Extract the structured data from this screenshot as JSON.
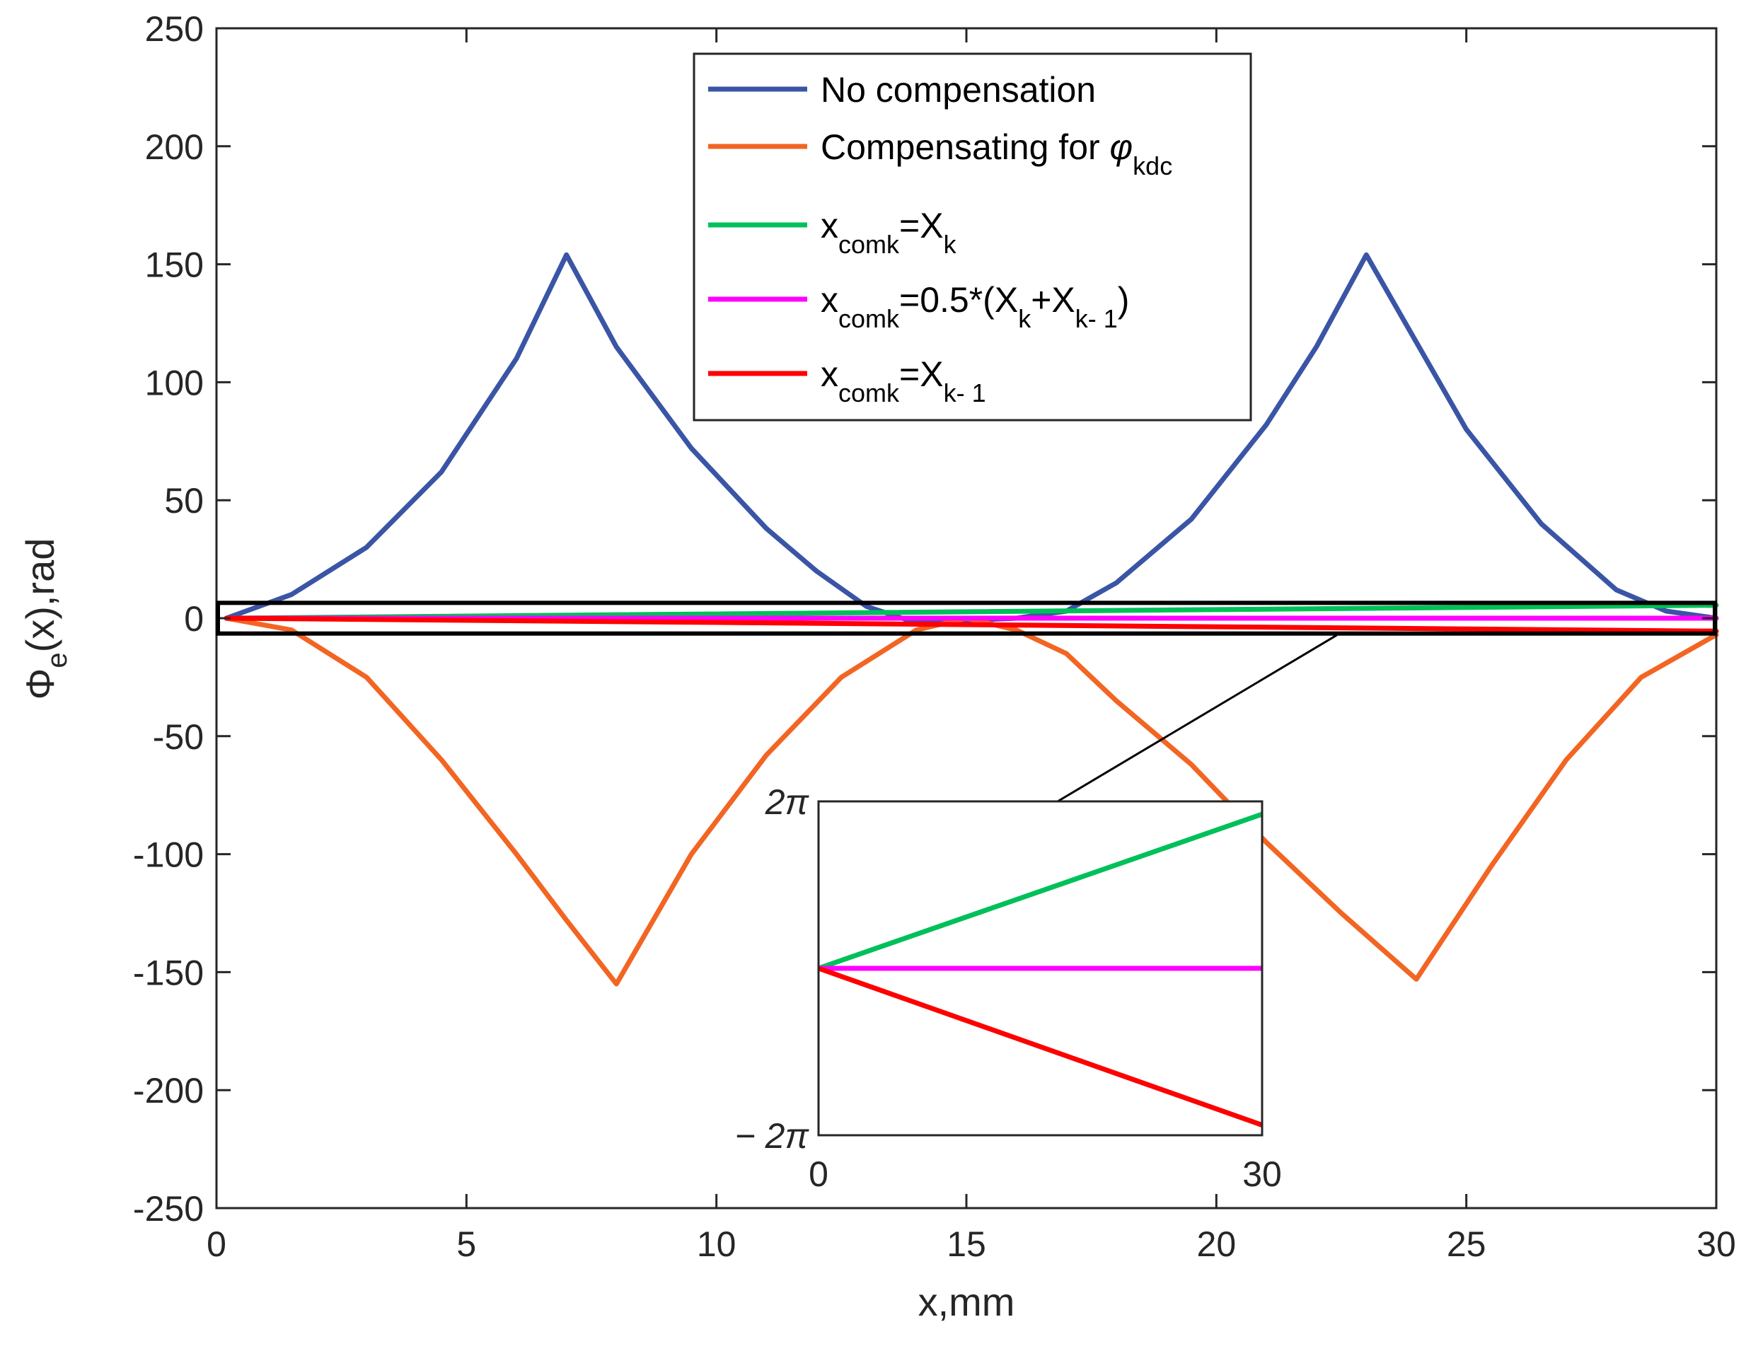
{
  "chart_data": {
    "type": "line",
    "xlabel": "x,mm",
    "ylabel": {
      "main": "Φ",
      "sub": "e",
      "rest": "(x),rad"
    },
    "xlim": [
      0,
      30
    ],
    "ylim": [
      -250,
      250
    ],
    "xticks": [
      0,
      5,
      10,
      15,
      20,
      25,
      30
    ],
    "yticks": [
      -250,
      -200,
      -150,
      -100,
      -50,
      0,
      50,
      100,
      150,
      200,
      250
    ],
    "grid": false,
    "legend_position": "top-center",
    "series": [
      {
        "name": "No compensation",
        "legend": [
          {
            "t": "No compensation"
          }
        ],
        "color": "#3a55a5",
        "x": [
          0.2,
          1.5,
          3,
          4.5,
          6,
          7,
          8,
          9.5,
          11,
          12,
          13,
          14,
          15,
          16,
          17,
          18,
          19.5,
          21,
          22,
          23,
          24,
          25,
          26.5,
          28,
          29,
          30
        ],
        "y": [
          0,
          10,
          30,
          62,
          110,
          154,
          115,
          72,
          38,
          20,
          5,
          -2,
          -1,
          0,
          3,
          15,
          42,
          82,
          115,
          154,
          117,
          80,
          40,
          12,
          3,
          0
        ]
      },
      {
        "name": "Compensating for φkdc",
        "legend": [
          {
            "t": "Compensating for "
          },
          {
            "t": "φ",
            "italic": true
          },
          {
            "t": "kdc",
            "sub": true
          }
        ],
        "color": "#f26522",
        "x": [
          0.2,
          1.5,
          3,
          4.5,
          6,
          7,
          8,
          9.5,
          11,
          12.5,
          14,
          15,
          16,
          17,
          18,
          19.5,
          21,
          22.5,
          24,
          25.5,
          27,
          28.5,
          30
        ],
        "y": [
          0,
          -5,
          -25,
          -60,
          -100,
          -128,
          -155,
          -100,
          -58,
          -25,
          -5,
          0,
          -5,
          -15,
          -35,
          -62,
          -95,
          -125,
          -153,
          -105,
          -60,
          -25,
          -7
        ]
      },
      {
        "name": "xcomk=Xk",
        "legend": [
          {
            "t": "x"
          },
          {
            "t": "comk",
            "sub": true
          },
          {
            "t": "=X"
          },
          {
            "t": "k",
            "sub": true
          }
        ],
        "color": "#00c05a",
        "x": [
          0.2,
          30
        ],
        "y": [
          0,
          5.5
        ]
      },
      {
        "name": "xcomk=0.5*(Xk+Xk-1)",
        "legend": [
          {
            "t": "x"
          },
          {
            "t": "comk",
            "sub": true
          },
          {
            "t": "=0.5*(X"
          },
          {
            "t": "k",
            "sub": true
          },
          {
            "t": "+X"
          },
          {
            "t": "k- 1",
            "sub": true
          },
          {
            "t": ")"
          }
        ],
        "color": "#ff00ff",
        "x": [
          0.2,
          30
        ],
        "y": [
          0,
          0
        ]
      },
      {
        "name": "xcomk=Xk-1",
        "legend": [
          {
            "t": "x"
          },
          {
            "t": "comk",
            "sub": true
          },
          {
            "t": "=X"
          },
          {
            "t": "k- 1",
            "sub": true
          }
        ],
        "color": "#ff0000",
        "x": [
          0.2,
          30
        ],
        "y": [
          0,
          -5.5
        ]
      }
    ],
    "zoom_box": {
      "xlim": [
        0,
        30
      ],
      "ylim": [
        -6.5,
        6.5
      ]
    },
    "inset": {
      "xlim": [
        0,
        30
      ],
      "ylim": [
        -6.2832,
        6.2832
      ],
      "xticklabels": [
        "0",
        "30"
      ],
      "yticklabels": [
        "2π",
        "− 2π"
      ],
      "series": [
        {
          "name": "xcomk=Xk",
          "x": [
            0,
            30
          ],
          "y": [
            0,
            5.8
          ]
        },
        {
          "name": "xcomk=0.5*(Xk+Xk-1)",
          "x": [
            0,
            30
          ],
          "y": [
            0,
            0
          ]
        },
        {
          "name": "xcomk=Xk-1",
          "x": [
            0,
            30
          ],
          "y": [
            0,
            -5.9
          ]
        }
      ]
    }
  }
}
